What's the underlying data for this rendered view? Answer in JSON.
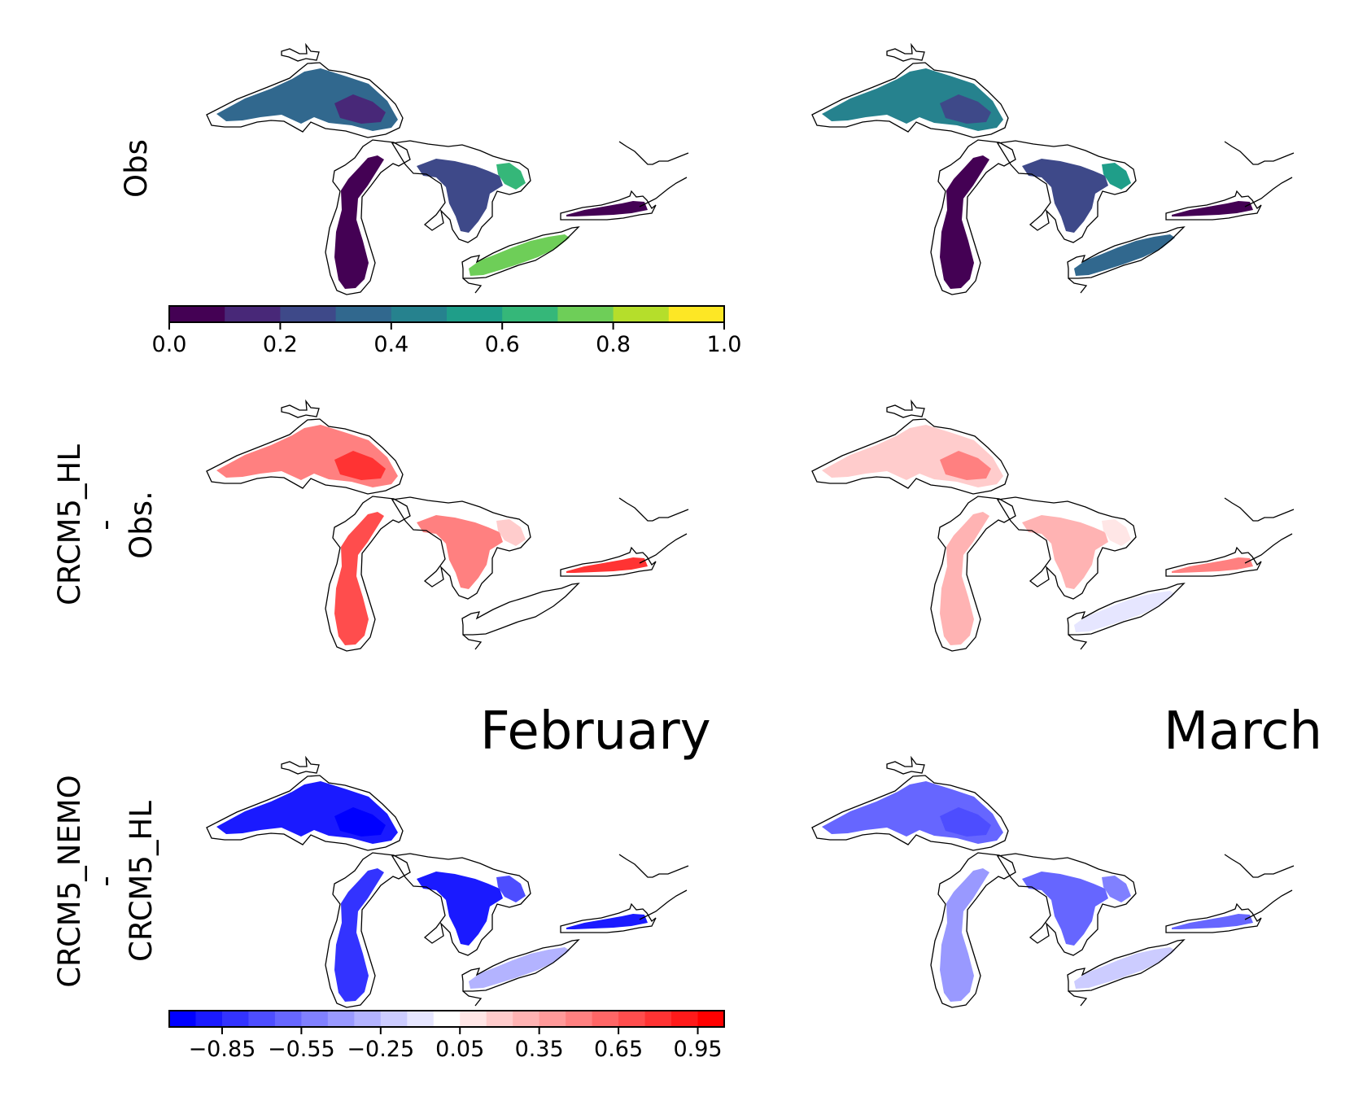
{
  "rows": [
    {
      "line1": "Obs",
      "line2": "",
      "line3": ""
    },
    {
      "line1": "CRCM5_HL",
      "line2": "-",
      "line3": "Obs."
    },
    {
      "line1": "CRCM5_NEMO",
      "line2": "-",
      "line3": "CRCM5_HL"
    }
  ],
  "months": [
    "February",
    "March"
  ],
  "colorbar_top": {
    "colormap": "viridis",
    "bounds": [
      0.0,
      0.1,
      0.2,
      0.3,
      0.4,
      0.5,
      0.6,
      0.7,
      0.8,
      0.9,
      1.0
    ],
    "colors": [
      "#440154",
      "#482878",
      "#3e4989",
      "#31688e",
      "#26828e",
      "#1f9e89",
      "#35b779",
      "#6ece58",
      "#b5de2b",
      "#fde725"
    ],
    "ticks": [
      "0.0",
      "0.2",
      "0.4",
      "0.6",
      "0.8",
      "1.0"
    ]
  },
  "colorbar_bottom": {
    "colormap": "bwr",
    "bounds": [
      -1.05,
      -0.95,
      -0.85,
      -0.75,
      -0.65,
      -0.55,
      -0.45,
      -0.35,
      -0.25,
      -0.15,
      -0.05,
      0.05,
      0.15,
      0.25,
      0.35,
      0.45,
      0.55,
      0.65,
      0.75,
      0.85,
      0.95,
      1.05
    ],
    "colors": [
      "#0000ff",
      "#1a1aff",
      "#3333ff",
      "#4d4dff",
      "#6666ff",
      "#8080ff",
      "#9999ff",
      "#b3b3ff",
      "#ccccff",
      "#e6e6ff",
      "#ffffff",
      "#ffe6e6",
      "#ffcccc",
      "#ffb3b3",
      "#ff9999",
      "#ff8080",
      "#ff6666",
      "#ff4d4d",
      "#ff3333",
      "#ff1a1a",
      "#ff0000"
    ],
    "ticks": [
      "−0.85",
      "−0.55",
      "−0.25",
      "0.05",
      "0.35",
      "0.65",
      "0.95"
    ]
  },
  "panel_fill": {
    "obs_february": {
      "superior": "#31688e",
      "superior_core": "#482878",
      "michigan": "#440154",
      "huron": "#3e4989",
      "huron_ne": "#35b779",
      "erie": "#6ece58",
      "ontario": "#440154"
    },
    "obs_march": {
      "superior": "#26828e",
      "superior_core": "#3e4989",
      "michigan": "#440154",
      "huron": "#3e4989",
      "huron_ne": "#1f9e89",
      "erie": "#31688e",
      "ontario": "#440154"
    },
    "hl_minus_obs_february": {
      "superior": "#ff8080",
      "superior_core": "#ff3333",
      "michigan": "#ff4d4d",
      "huron": "#ff8080",
      "huron_ne": "#ffcccc",
      "erie": "#ffffff",
      "ontario": "#ff3333"
    },
    "hl_minus_obs_march": {
      "superior": "#ffcccc",
      "superior_core": "#ff8080",
      "michigan": "#ffb3b3",
      "huron": "#ffb3b3",
      "huron_ne": "#ffe6e6",
      "erie": "#e6e6ff",
      "ontario": "#ff8080"
    },
    "nemo_minus_hl_february": {
      "superior": "#1a1aff",
      "superior_core": "#0000ff",
      "michigan": "#3333ff",
      "huron": "#1a1aff",
      "huron_ne": "#4d4dff",
      "erie": "#b3b3ff",
      "ontario": "#1a1aff"
    },
    "nemo_minus_hl_march": {
      "superior": "#6666ff",
      "superior_core": "#4d4dff",
      "michigan": "#9999ff",
      "huron": "#6666ff",
      "huron_ne": "#8080ff",
      "erie": "#ccccff",
      "ontario": "#6666ff"
    }
  }
}
